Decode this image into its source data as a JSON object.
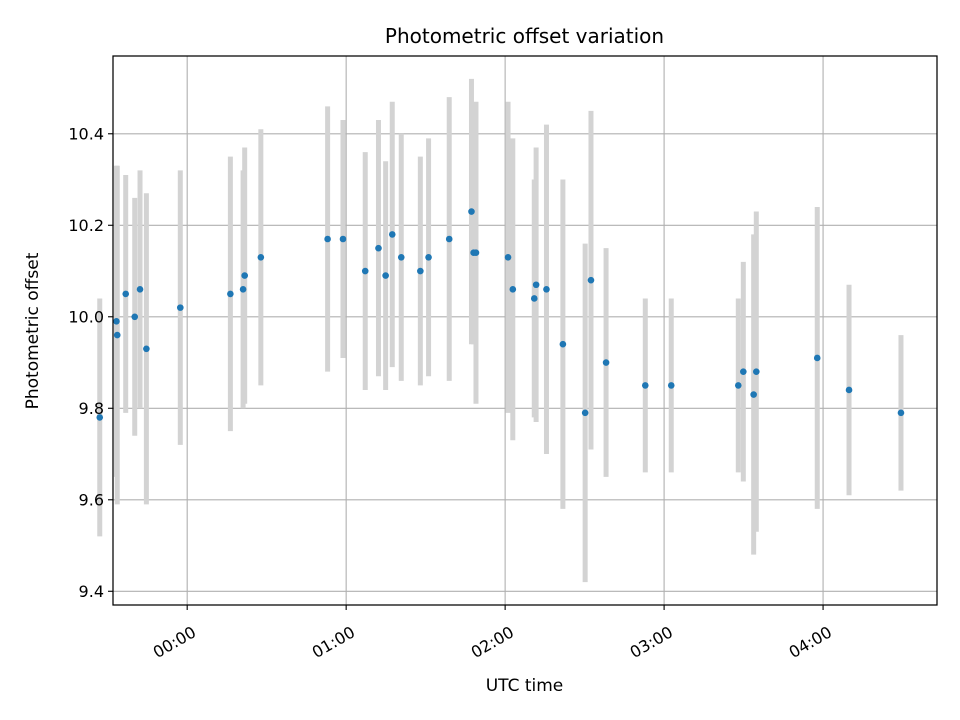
{
  "chart_data": {
    "type": "scatter",
    "title": "Photometric offset variation",
    "xlabel": "UTC time",
    "ylabel": "Photometric offset",
    "x_tick_labels": [
      "00:00",
      "01:00",
      "02:00",
      "03:00",
      "04:00"
    ],
    "x_tick_values_min": [
      0,
      60,
      120,
      180,
      240
    ],
    "y_tick_labels": [
      "9.4",
      "9.6",
      "9.8",
      "10.0",
      "10.2",
      "10.4"
    ],
    "y_tick_values": [
      9.4,
      9.6,
      9.8,
      10.0,
      10.2,
      10.4
    ],
    "xlim_min": [
      -28,
      283
    ],
    "ylim": [
      9.37,
      10.57
    ],
    "grid": true,
    "point_color": "#1f77b4",
    "errorbar_color": "#d3d3d3",
    "points": [
      {
        "t": -33.0,
        "y": 9.78,
        "err": 0.26
      },
      {
        "t": -26.7,
        "y": 9.99,
        "err": 0.34
      },
      {
        "t": -26.4,
        "y": 9.96,
        "err": 0.37
      },
      {
        "t": -23.2,
        "y": 10.05,
        "err": 0.26
      },
      {
        "t": -19.8,
        "y": 10.0,
        "err": 0.26
      },
      {
        "t": -17.8,
        "y": 10.06,
        "err": 0.26
      },
      {
        "t": -15.4,
        "y": 9.93,
        "err": 0.34
      },
      {
        "t": -2.6,
        "y": 10.02,
        "err": 0.3
      },
      {
        "t": 16.3,
        "y": 10.05,
        "err": 0.3
      },
      {
        "t": 21.1,
        "y": 10.06,
        "err": 0.26
      },
      {
        "t": 21.7,
        "y": 10.09,
        "err": 0.28
      },
      {
        "t": 27.8,
        "y": 10.13,
        "err": 0.28
      },
      {
        "t": 53.0,
        "y": 10.17,
        "err": 0.29
      },
      {
        "t": 58.8,
        "y": 10.17,
        "err": 0.26
      },
      {
        "t": 67.2,
        "y": 10.1,
        "err": 0.26
      },
      {
        "t": 72.2,
        "y": 10.15,
        "err": 0.28
      },
      {
        "t": 74.9,
        "y": 10.09,
        "err": 0.25
      },
      {
        "t": 77.4,
        "y": 10.18,
        "err": 0.29
      },
      {
        "t": 80.8,
        "y": 10.13,
        "err": 0.27
      },
      {
        "t": 88.0,
        "y": 10.1,
        "err": 0.25
      },
      {
        "t": 91.1,
        "y": 10.13,
        "err": 0.26
      },
      {
        "t": 98.9,
        "y": 10.17,
        "err": 0.31
      },
      {
        "t": 107.3,
        "y": 10.23,
        "err": 0.29
      },
      {
        "t": 108.1,
        "y": 10.14,
        "err": 0.2
      },
      {
        "t": 109.0,
        "y": 10.14,
        "err": 0.33
      },
      {
        "t": 121.1,
        "y": 10.13,
        "err": 0.34
      },
      {
        "t": 122.9,
        "y": 10.06,
        "err": 0.33
      },
      {
        "t": 131.0,
        "y": 10.04,
        "err": 0.26
      },
      {
        "t": 131.7,
        "y": 10.07,
        "err": 0.3
      },
      {
        "t": 135.6,
        "y": 10.06,
        "err": 0.36
      },
      {
        "t": 141.8,
        "y": 9.94,
        "err": 0.36
      },
      {
        "t": 150.2,
        "y": 9.79,
        "err": 0.37
      },
      {
        "t": 152.4,
        "y": 10.08,
        "err": 0.37
      },
      {
        "t": 158.1,
        "y": 9.9,
        "err": 0.25
      },
      {
        "t": 172.9,
        "y": 9.85,
        "err": 0.19
      },
      {
        "t": 182.7,
        "y": 9.85,
        "err": 0.19
      },
      {
        "t": 208.0,
        "y": 9.85,
        "err": 0.19
      },
      {
        "t": 209.9,
        "y": 9.88,
        "err": 0.24
      },
      {
        "t": 213.8,
        "y": 9.83,
        "err": 0.35
      },
      {
        "t": 214.8,
        "y": 9.88,
        "err": 0.35
      },
      {
        "t": 237.8,
        "y": 9.91,
        "err": 0.33
      },
      {
        "t": 249.8,
        "y": 9.84,
        "err": 0.23
      },
      {
        "t": 269.4,
        "y": 9.79,
        "err": 0.17
      }
    ]
  }
}
